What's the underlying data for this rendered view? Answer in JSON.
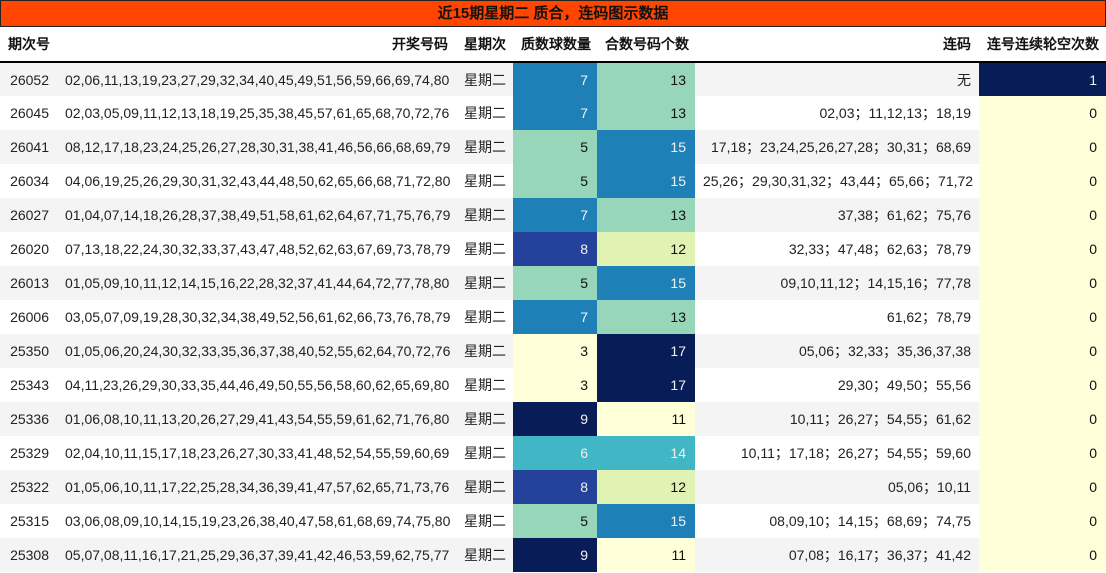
{
  "title": "近15期星期二 质合，连码图示数据",
  "colors": {
    "title_bg": "#FF4500",
    "colormap": "YlGnBu",
    "scale": {
      "lightest": "#FFFFD9",
      "pale_green": "#E0F3B2",
      "mint": "#97D6B9",
      "teal": "#41B6C4",
      "blue": "#1F80B8",
      "indigo": "#24429B",
      "navy": "#081D58"
    }
  },
  "table": {
    "headers": [
      "期次号",
      "开奖号码",
      "星期次",
      "质数球数量",
      "合数号码个数",
      "连码",
      "连号连续轮空次数"
    ],
    "rows": [
      {
        "issue": "26052",
        "numbers": "02,06,11,13,19,23,27,29,32,34,40,45,49,51,56,59,66,69,74,80",
        "weekday": "星期二",
        "prime_count": "7",
        "composite_count": "13",
        "consecutive": "无",
        "miss_count": "1"
      },
      {
        "issue": "26045",
        "numbers": "02,03,05,09,11,12,13,18,19,25,35,38,45,57,61,65,68,70,72,76",
        "weekday": "星期二",
        "prime_count": "7",
        "composite_count": "13",
        "consecutive": "02,03；11,12,13；18,19",
        "miss_count": "0"
      },
      {
        "issue": "26041",
        "numbers": "08,12,17,18,23,24,25,26,27,28,30,31,38,41,46,56,66,68,69,79",
        "weekday": "星期二",
        "prime_count": "5",
        "composite_count": "15",
        "consecutive": "17,18；23,24,25,26,27,28；30,31；68,69",
        "miss_count": "0"
      },
      {
        "issue": "26034",
        "numbers": "04,06,19,25,26,29,30,31,32,43,44,48,50,62,65,66,68,71,72,80",
        "weekday": "星期二",
        "prime_count": "5",
        "composite_count": "15",
        "consecutive": "25,26；29,30,31,32；43,44；65,66；71,72",
        "miss_count": "0"
      },
      {
        "issue": "26027",
        "numbers": "01,04,07,14,18,26,28,37,38,49,51,58,61,62,64,67,71,75,76,79",
        "weekday": "星期二",
        "prime_count": "7",
        "composite_count": "13",
        "consecutive": "37,38；61,62；75,76",
        "miss_count": "0"
      },
      {
        "issue": "26020",
        "numbers": "07,13,18,22,24,30,32,33,37,43,47,48,52,62,63,67,69,73,78,79",
        "weekday": "星期二",
        "prime_count": "8",
        "composite_count": "12",
        "consecutive": "32,33；47,48；62,63；78,79",
        "miss_count": "0"
      },
      {
        "issue": "26013",
        "numbers": "01,05,09,10,11,12,14,15,16,22,28,32,37,41,44,64,72,77,78,80",
        "weekday": "星期二",
        "prime_count": "5",
        "composite_count": "15",
        "consecutive": "09,10,11,12；14,15,16；77,78",
        "miss_count": "0"
      },
      {
        "issue": "26006",
        "numbers": "03,05,07,09,19,28,30,32,34,38,49,52,56,61,62,66,73,76,78,79",
        "weekday": "星期二",
        "prime_count": "7",
        "composite_count": "13",
        "consecutive": "61,62；78,79",
        "miss_count": "0"
      },
      {
        "issue": "25350",
        "numbers": "01,05,06,20,24,30,32,33,35,36,37,38,40,52,55,62,64,70,72,76",
        "weekday": "星期二",
        "prime_count": "3",
        "composite_count": "17",
        "consecutive": "05,06；32,33；35,36,37,38",
        "miss_count": "0"
      },
      {
        "issue": "25343",
        "numbers": "04,11,23,26,29,30,33,35,44,46,49,50,55,56,58,60,62,65,69,80",
        "weekday": "星期二",
        "prime_count": "3",
        "composite_count": "17",
        "consecutive": "29,30；49,50；55,56",
        "miss_count": "0"
      },
      {
        "issue": "25336",
        "numbers": "01,06,08,10,11,13,20,26,27,29,41,43,54,55,59,61,62,71,76,80",
        "weekday": "星期二",
        "prime_count": "9",
        "composite_count": "11",
        "consecutive": "10,11；26,27；54,55；61,62",
        "miss_count": "0"
      },
      {
        "issue": "25329",
        "numbers": "02,04,10,11,15,17,18,23,26,27,30,33,41,48,52,54,55,59,60,69",
        "weekday": "星期二",
        "prime_count": "6",
        "composite_count": "14",
        "consecutive": "10,11；17,18；26,27；54,55；59,60",
        "miss_count": "0"
      },
      {
        "issue": "25322",
        "numbers": "01,05,06,10,11,17,22,25,28,34,36,39,41,47,57,62,65,71,73,76",
        "weekday": "星期二",
        "prime_count": "8",
        "composite_count": "12",
        "consecutive": "05,06；10,11",
        "miss_count": "0"
      },
      {
        "issue": "25315",
        "numbers": "03,06,08,09,10,14,15,19,23,26,38,40,47,58,61,68,69,74,75,80",
        "weekday": "星期二",
        "prime_count": "5",
        "composite_count": "15",
        "consecutive": "08,09,10；14,15；68,69；74,75",
        "miss_count": "0"
      },
      {
        "issue": "25308",
        "numbers": "05,07,08,11,16,17,21,25,29,36,37,39,41,42,46,53,59,62,75,77",
        "weekday": "星期二",
        "prime_count": "9",
        "composite_count": "11",
        "consecutive": "07,08；16,17；36,37；41,42",
        "miss_count": "0"
      }
    ]
  },
  "heat_colors": {
    "prime_count": {
      "3": "#FFFFD9",
      "5": "#97D6B9",
      "6": "#41B6C4",
      "7": "#1F80B8",
      "8": "#24429B",
      "9": "#081D58"
    },
    "composite_count": {
      "11": "#FFFFD9",
      "12": "#E0F3B2",
      "13": "#97D6B9",
      "14": "#41B6C4",
      "15": "#1F80B8",
      "17": "#081D58"
    },
    "miss_count": {
      "0": "#FFFFD9",
      "1": "#081D58"
    }
  },
  "chart_data": {
    "type": "heatmap",
    "title": "近15期星期二 质合，连码图示数据",
    "categories": [
      "26052",
      "26045",
      "26041",
      "26034",
      "26027",
      "26020",
      "26013",
      "26006",
      "25350",
      "25343",
      "25336",
      "25329",
      "25322",
      "25315",
      "25308"
    ],
    "series": [
      {
        "name": "质数球数量",
        "values": [
          7,
          7,
          5,
          5,
          7,
          8,
          5,
          7,
          3,
          3,
          9,
          6,
          8,
          5,
          9
        ]
      },
      {
        "name": "合数号码个数",
        "values": [
          13,
          13,
          15,
          15,
          13,
          12,
          15,
          13,
          17,
          17,
          11,
          14,
          12,
          15,
          11
        ]
      },
      {
        "name": "连号连续轮空次数",
        "values": [
          1,
          0,
          0,
          0,
          0,
          0,
          0,
          0,
          0,
          0,
          0,
          0,
          0,
          0,
          0
        ]
      }
    ],
    "colormap": "YlGnBu"
  }
}
